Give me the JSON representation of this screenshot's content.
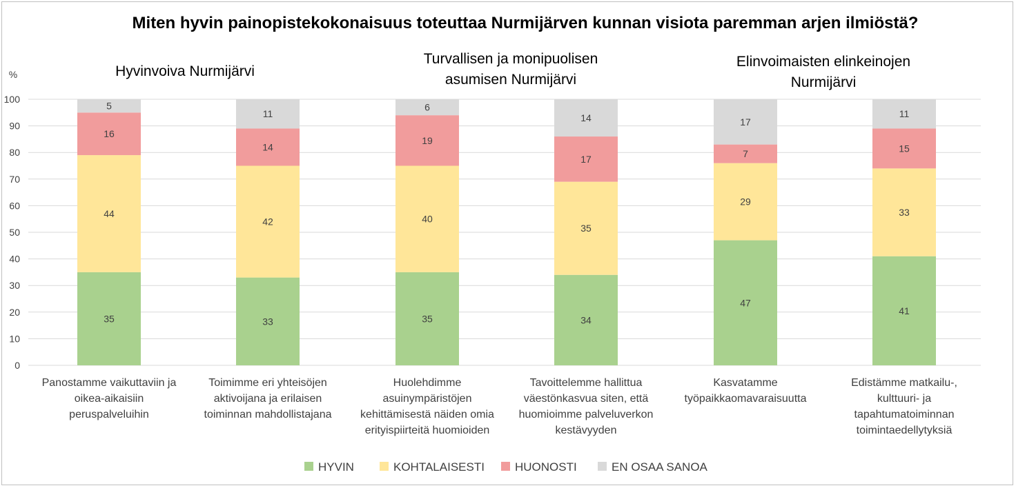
{
  "chart_data": {
    "type": "bar",
    "stacked": true,
    "title": "Miten hyvin painopistekokonaisuus toteuttaa Nurmijärven kunnan visiota paremman arjen ilmiöstä?",
    "ylabel": "%",
    "ylim": [
      0,
      100
    ],
    "yticks": [
      "0",
      "10",
      "20",
      "30",
      "40",
      "50",
      "60",
      "70",
      "80",
      "90",
      "100"
    ],
    "grid": true,
    "legend_position": "bottom",
    "groups": [
      {
        "title_lines": [
          "Hyvinvoiva Nurmijärvi"
        ]
      },
      {
        "title_lines": [
          "Turvallisen ja monipuolisen",
          "asumisen Nurmijärvi"
        ]
      },
      {
        "title_lines": [
          "Elinvoimaisten elinkeinojen",
          "Nurmijärvi"
        ]
      }
    ],
    "categories": [
      {
        "lines": [
          "Panostamme vaikuttaviin ja",
          "oikea-aikaisiin",
          "peruspalveluihin"
        ]
      },
      {
        "lines": [
          "Toimimme eri yhteisöjen",
          "aktivoijana ja erilaisen",
          "toiminnan mahdollistajana"
        ]
      },
      {
        "lines": [
          "Huolehdimme",
          "asuinympäristöjen",
          "kehittämisestä näiden omia",
          "erityispiirteitä huomioiden"
        ]
      },
      {
        "lines": [
          "Tavoittelemme hallittua",
          "väestönkasvua siten, että",
          "huomioimme palveluverkon",
          "kestävyyden"
        ]
      },
      {
        "lines": [
          "Kasvatamme",
          "työpaikkaomavaraisuutta"
        ]
      },
      {
        "lines": [
          "Edistämme matkailu-,",
          "kulttuuri- ja",
          "tapahtumatoiminnan",
          "toimintaedellytyksiä"
        ]
      }
    ],
    "series": [
      {
        "name": "HYVIN",
        "color": "#a9d18e",
        "values": [
          35,
          33,
          35,
          34,
          47,
          41
        ]
      },
      {
        "name": "KOHTALAISESTI",
        "color": "#ffe699",
        "values": [
          44,
          42,
          40,
          35,
          29,
          33
        ]
      },
      {
        "name": "HUONOSTI",
        "color": "#f19c9c",
        "values": [
          16,
          14,
          19,
          17,
          7,
          15
        ]
      },
      {
        "name": "EN OSAA SANOA",
        "color": "#d9d9d9",
        "values": [
          5,
          11,
          6,
          14,
          17,
          11
        ]
      }
    ]
  }
}
